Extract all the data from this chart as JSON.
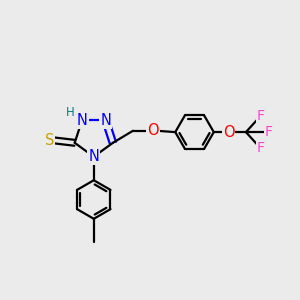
{
  "bg_color": "#ebebeb",
  "atom_colors": {
    "C": "#000000",
    "N": "#0000ff",
    "H_N": "#008080",
    "S": "#c8a000",
    "O": "#ff0000",
    "F": "#ff44cc"
  },
  "line_color": "#000000",
  "line_width": 1.6,
  "font_size": 10.5,
  "figsize": [
    3.0,
    3.0
  ],
  "dpi": 100,
  "xlim": [
    0,
    10
  ],
  "ylim": [
    0,
    10
  ]
}
